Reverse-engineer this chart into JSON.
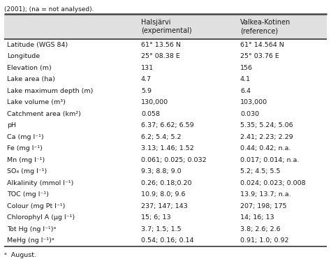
{
  "title_text": "(2001); (na = not analysed).",
  "col_headers": [
    "",
    "Halsjärvi\n(experimental)",
    "Valkea-Kotinen\n(reference)"
  ],
  "rows": [
    [
      "Latitude (WGS 84)",
      "61° 13.56 N",
      "61° 14.564 N"
    ],
    [
      "Longitude",
      "25° 08.38 E",
      "25° 03.76 E"
    ],
    [
      "Elevation (m)",
      "131",
      "156"
    ],
    [
      "Lake area (ha)",
      "4.7",
      "4.1"
    ],
    [
      "Lake maximum depth (m)",
      "5.9",
      "6.4"
    ],
    [
      "Lake volume (m³)",
      "130,000",
      "103,000"
    ],
    [
      "Catchment area (km²)",
      "0.058",
      "0.030"
    ],
    [
      "pH",
      "6.37; 6.62; 6.59",
      "5.35; 5.24; 5.06"
    ],
    [
      "Ca (mg l⁻¹)",
      "6.2; 5.4; 5.2",
      "2.41; 2.23; 2.29"
    ],
    [
      "Fe (mg l⁻¹)",
      "3.13; 1.46; 1.52",
      "0.44; 0.42; n.a."
    ],
    [
      "Mn (mg l⁻¹)",
      "0.061; 0.025; 0.032",
      "0.017; 0.014; n.a."
    ],
    [
      "SO₄ (mg l⁻¹)",
      "9.3; 8.8; 9.0",
      "5.2; 4.5; 5.5"
    ],
    [
      "Alkalinity (mmol l⁻¹)",
      "0.26; 0.18;0.20",
      "0.024; 0.023; 0.008"
    ],
    [
      "TOC (mg l⁻¹)",
      "10.9; 8.0; 9.6",
      "13.9; 13.7; n.a."
    ],
    [
      "Colour (mg Pt l⁻¹)",
      "237; 147; 143",
      "207; 198; 175"
    ],
    [
      "Chlorophyl A (µg l⁻¹)",
      "15; 6; 13",
      "14; 16; 13"
    ],
    [
      "Tot Hg (ng l⁻¹)ᵃ",
      "3.7; 1.5; 1.5",
      "3.8; 2.6; 2.6"
    ],
    [
      "MeHg (ng l⁻¹)ᵃ",
      "0.54; 0.16; 0.14",
      "0.91; 1.0; 0.92"
    ]
  ],
  "footnote": "ᵃ  August.",
  "header_bg": "#e0e0e0",
  "body_bg": "#ffffff",
  "text_color": "#1a1a1a",
  "header_text_color": "#1a1a1a",
  "font_size": 6.8,
  "header_font_size": 7.0,
  "title_font_size": 6.5,
  "footnote_font_size": 6.8,
  "fig_width": 4.74,
  "fig_height": 3.71,
  "dpi": 100
}
